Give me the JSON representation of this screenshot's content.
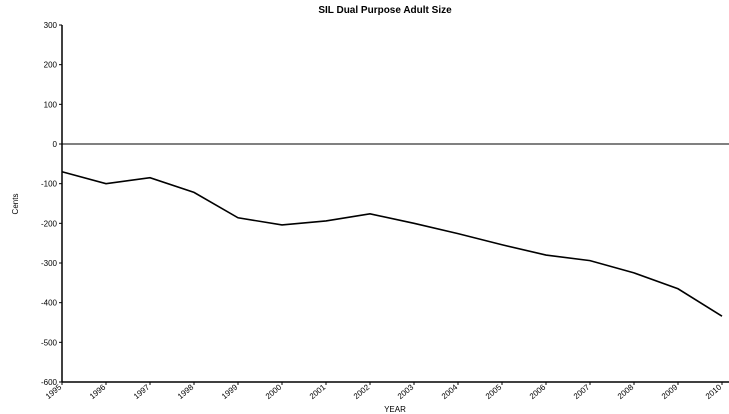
{
  "chart_data": {
    "type": "line",
    "title": "SIL Dual Purpose Adult Size",
    "x_label": "YEAR",
    "y_label": "Cents",
    "categories": [
      "1995",
      "1996",
      "1997",
      "1998",
      "1999",
      "2000",
      "2001",
      "2002",
      "2003",
      "2004",
      "2005",
      "2006",
      "2007",
      "2008",
      "2009",
      "2010"
    ],
    "series": [
      {
        "name": "SIL Dual Purpose Adult Size",
        "color": "#000000",
        "values": [
          -70,
          -100,
          -85,
          -122,
          -186,
          -204,
          -194,
          -176,
          -200,
          -226,
          -254,
          -280,
          -294,
          -325,
          -365,
          -434
        ]
      }
    ],
    "ylim": [
      -600,
      300
    ],
    "yticks": [
      -600,
      -500,
      -400,
      -300,
      -200,
      -100,
      0,
      100,
      200,
      300
    ],
    "zero_line": true
  }
}
